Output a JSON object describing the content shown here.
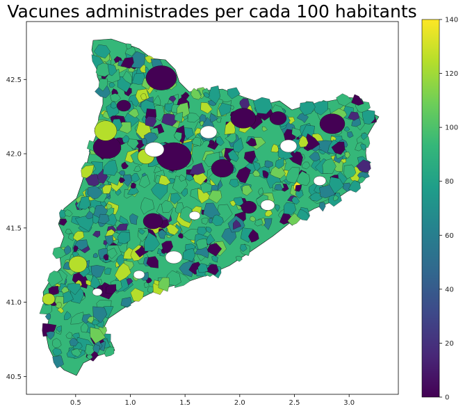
{
  "chart_data": {
    "type": "choropleth",
    "title": "Vacunes administrades per cada 100 habitants",
    "xlabel": "",
    "ylabel": "",
    "xlim": [
      0.05,
      3.45
    ],
    "ylim": [
      40.38,
      42.89
    ],
    "x_ticks": [
      "0.5",
      "1.0",
      "1.5",
      "2.0",
      "2.5",
      "3.0"
    ],
    "y_ticks": [
      "40.5",
      "41.0",
      "41.5",
      "42.0",
      "42.5"
    ],
    "colorbar": {
      "min": 0,
      "max": 140,
      "ticks": [
        "0",
        "20",
        "40",
        "60",
        "80",
        "100",
        "120",
        "140"
      ],
      "colormap": "viridis",
      "stops": [
        "#440154",
        "#482878",
        "#3e4989",
        "#31688e",
        "#26828e",
        "#1f9e89",
        "#35b779",
        "#6ece58",
        "#b5de2b",
        "#fde725"
      ]
    },
    "region": "Catalonia municipalities",
    "missing_color": "#ffffff"
  }
}
